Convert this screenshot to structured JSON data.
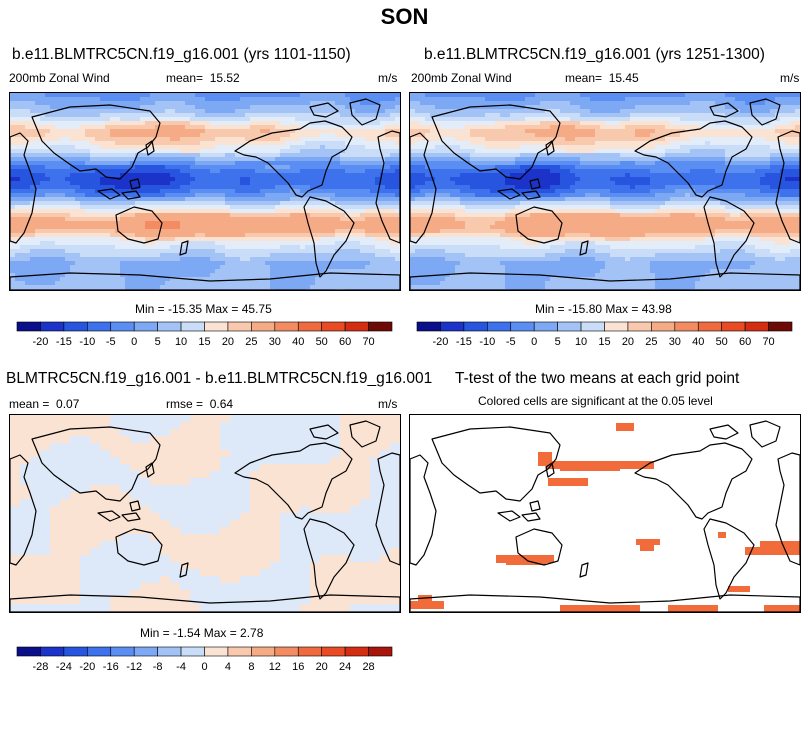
{
  "season": "SON",
  "colors": {
    "blue_scale": [
      "#0b0f8a",
      "#1b33c8",
      "#2855e0",
      "#3d72ec",
      "#5b8ef2",
      "#7da8f4",
      "#a3c2f6",
      "#c9dcf8",
      "#e3edf9"
    ],
    "red_scale": [
      "#fbe3d3",
      "#f8c9ad",
      "#f5ab86",
      "#f38c63",
      "#f06a40",
      "#e94b25",
      "#d32d12",
      "#a8150a",
      "#6e0a05"
    ],
    "sig_color": "#f26b3a",
    "land_line": "#000000"
  },
  "chart_data": [
    {
      "type": "heatmap",
      "title": "b.e11.BLMTRC5CN.f19_g16.001 (yrs 1101-1150)",
      "variable": "200mb Zonal Wind",
      "mean_label": "mean=",
      "mean": "15.52",
      "units": "m/s",
      "minmax_text": "Min = -15.35 Max = 45.75",
      "levels": [
        -20,
        -15,
        -10,
        -5,
        0,
        5,
        10,
        15,
        20,
        25,
        30,
        40,
        50,
        60,
        70
      ]
    },
    {
      "type": "heatmap",
      "title": "b.e11.BLMTRC5CN.f19_g16.001 (yrs 1251-1300)",
      "variable": "200mb Zonal Wind",
      "mean_label": "mean=",
      "mean": "15.45",
      "units": "m/s",
      "minmax_text": "Min = -15.80 Max = 43.98",
      "levels": [
        -20,
        -15,
        -10,
        -5,
        0,
        5,
        10,
        15,
        20,
        25,
        30,
        40,
        50,
        60,
        70
      ]
    },
    {
      "type": "heatmap",
      "title": "BLMTRC5CN.f19_g16.001 - b.e11.BLMTRC5CN.f19_g16.001",
      "mean_label": "mean =",
      "mean": "0.07",
      "rmse_label": "rmse =",
      "rmse": "0.64",
      "units": "m/s",
      "minmax_text": "Min = -1.54 Max = 2.78",
      "levels": [
        -28,
        -24,
        -20,
        -16,
        -12,
        -8,
        -4,
        0,
        4,
        8,
        12,
        16,
        20,
        24,
        28
      ]
    },
    {
      "type": "heatmap",
      "title": "T-test of the two means at each grid point",
      "subtitle": "Colored cells are significant at the 0.05 level"
    }
  ]
}
